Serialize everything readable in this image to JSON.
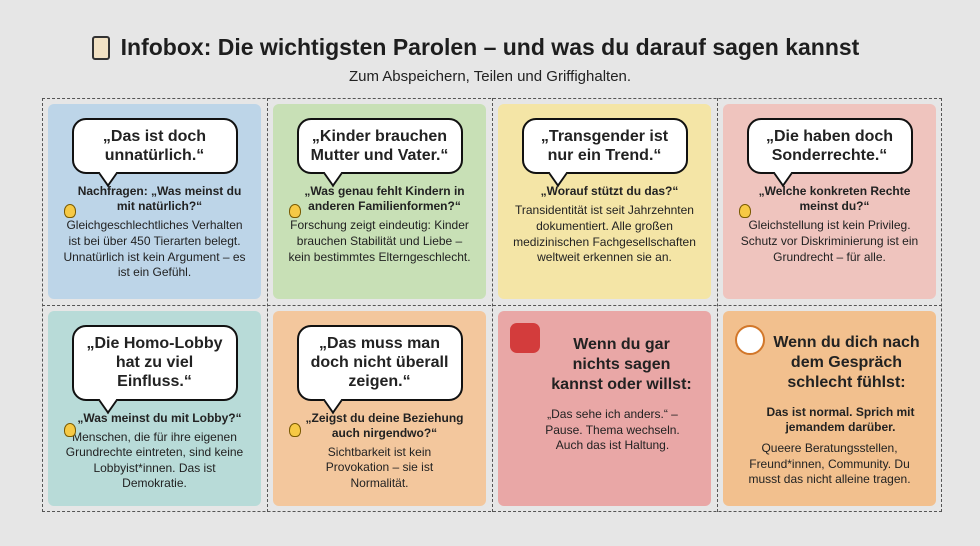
{
  "header": {
    "title": "Infobox: Die wichtigsten Parolen – und was du darauf sagen kannst",
    "subtitle": "Zum Abspeichern, Teilen und Griffighalten."
  },
  "cards": [
    {
      "quote": "„Das ist doch unnatürlich.“",
      "prompt": "Nachfragen: „Was meinst du mit natürlich?“",
      "answer": "Gleichgeschlechtliches Verhalten ist bei über 450 Tierarten belegt. Unnatürlich ist kein Argument – es ist ein Gefühl."
    },
    {
      "quote": "„Kinder brauchen Mutter und Vater.“",
      "prompt": "„Was genau fehlt Kindern in anderen Familienformen?“",
      "answer": "Forschung zeigt eindeutig: Kinder brauchen Stabilität und Liebe – kein bestimmtes Elterngeschlecht."
    },
    {
      "quote": "„Transgender ist nur ein Trend.“",
      "prompt": "„Worauf stützt du das?“",
      "answer": "Transidentität ist seit Jahrzehnten dokumentiert. Alle großen medizinischen Fachgesellschaften weltweit erkennen sie an."
    },
    {
      "quote": "„Die haben doch Sonderrechte.“",
      "prompt": "„Welche konkreten Rechte meinst du?“",
      "answer": "Gleichstellung ist kein Privileg. Schutz vor Diskriminierung ist ein Grundrecht – für alle."
    },
    {
      "quote": "„Die Homo-Lobby hat zu viel Einfluss.“",
      "prompt": "„Was meinst du mit Lobby?“",
      "answer": "Menschen, die für ihre eigenen Grundrechte eintreten, sind keine Lobbyist*innen. Das ist Demokratie."
    },
    {
      "quote": "„Das muss man doch nicht überall zeigen.“",
      "prompt": "„Zeigst du deine Beziehung auch nirgendwo?“",
      "answer": "Sichtbarkeit ist kein Provokation – sie ist Normalität."
    },
    {
      "heading": "Wenn du gar nichts sagen kannst oder willst:",
      "answer": "„Das sehe ich anders.“ – Pause. Thema wechseln. Auch das ist Haltung."
    },
    {
      "heading": "Wenn du dich nach dem Gespräch schlecht fühlst:",
      "prompt": "Das ist normal. Sprich mit jemandem darüber.",
      "answer": "Queere Beratungsstellen, Freund*innen, Community. Du musst das nicht alleine tragen."
    }
  ]
}
